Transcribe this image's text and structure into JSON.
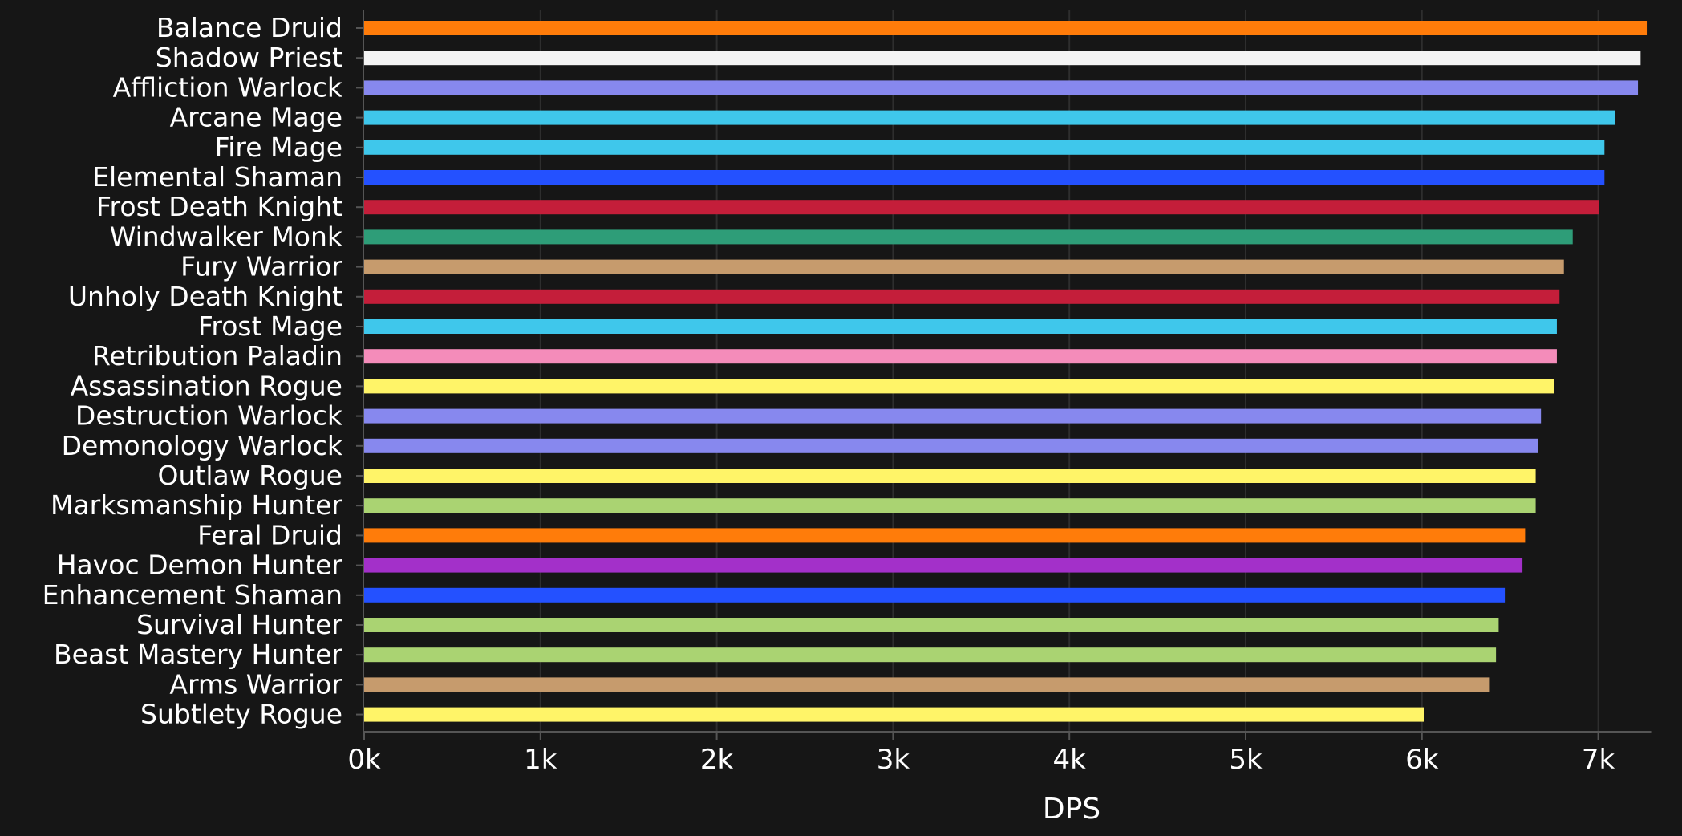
{
  "chart_data": {
    "type": "bar",
    "orientation": "horizontal",
    "title": "",
    "xlabel": "DPS",
    "ylabel": "",
    "xlim": [
      0,
      7300
    ],
    "xticks": [
      0,
      1000,
      2000,
      3000,
      4000,
      5000,
      6000,
      7000
    ],
    "xtick_labels": [
      "0k",
      "1k",
      "2k",
      "3k",
      "4k",
      "5k",
      "6k",
      "7k"
    ],
    "grid": "vertical",
    "legend": "none",
    "categories": [
      "Balance Druid",
      "Shadow Priest",
      "Affliction Warlock",
      "Arcane Mage",
      "Fire Mage",
      "Elemental Shaman",
      "Frost Death Knight",
      "Windwalker Monk",
      "Fury Warrior",
      "Unholy Death Knight",
      "Frost Mage",
      "Retribution Paladin",
      "Assassination Rogue",
      "Destruction Warlock",
      "Demonology Warlock",
      "Outlaw Rogue",
      "Marksmanship Hunter",
      "Feral Druid",
      "Havoc Demon Hunter",
      "Enhancement Shaman",
      "Survival Hunter",
      "Beast Mastery Hunter",
      "Arms Warrior",
      "Subtlety Rogue"
    ],
    "values": [
      7275,
      7240,
      7225,
      7095,
      7035,
      7035,
      7005,
      6855,
      6805,
      6780,
      6765,
      6765,
      6750,
      6675,
      6660,
      6645,
      6645,
      6585,
      6570,
      6470,
      6435,
      6420,
      6385,
      6010
    ],
    "colors": [
      "#ff7c0a",
      "#f4f4f4",
      "#8788ee",
      "#3fc7eb",
      "#3fc7eb",
      "#2451ff",
      "#c41e3a",
      "#2e9d78",
      "#c69b6d",
      "#c41e3a",
      "#3fc7eb",
      "#f48cba",
      "#fff468",
      "#8788ee",
      "#8788ee",
      "#fff468",
      "#aad372",
      "#ff7c0a",
      "#a330c9",
      "#2451ff",
      "#aad372",
      "#aad372",
      "#c69b6d",
      "#fff468"
    ]
  }
}
